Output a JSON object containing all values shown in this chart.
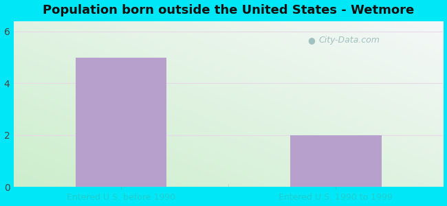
{
  "title": "Population born outside the United States - Wetmore",
  "categories": [
    "Entered U.S. before 1990",
    "Entered U.S. 1990 to 1999"
  ],
  "values": [
    5,
    2
  ],
  "bar_color": "#b8a0cc",
  "bar_positions": [
    1,
    3
  ],
  "bar_width": 0.85,
  "ylim": [
    0,
    6.4
  ],
  "xlim": [
    0,
    4
  ],
  "yticks": [
    0,
    2,
    4,
    6
  ],
  "xlabel_color": "#22cccc",
  "title_fontsize": 13,
  "tick_fontsize": 10,
  "background_outer": "#00e8f8",
  "watermark_text": "City-Data.com",
  "watermark_color": "#99bbbb",
  "grid_color": "#e8d8e8",
  "bg_left_bottom": "#c8eec8",
  "bg_right_top": "#f0f8f8"
}
